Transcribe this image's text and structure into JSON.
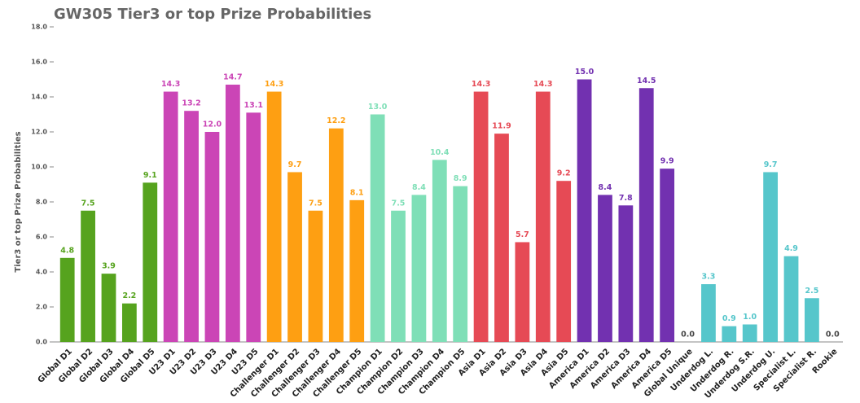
{
  "chart_data": {
    "type": "bar",
    "title": "GW305 Tier3 or top Prize Probabilities",
    "y_label": "Tier3 or top Prize Probabilities",
    "categories": [
      "Global D1",
      "Global D2",
      "Global D3",
      "Global D4",
      "Global D5",
      "U23 D1",
      "U23 D2",
      "U23 D3",
      "U23 D4",
      "U23 D5",
      "Challenger D1",
      "Challenger D2",
      "Challenger D3",
      "Challenger D4",
      "Challenger D5",
      "Champion D1",
      "Champion D2",
      "Champion D3",
      "Champion D4",
      "Champion D5",
      "Asia D1",
      "Asia D2",
      "Asia D3",
      "Asia D4",
      "Asia D5",
      "America D1",
      "America D2",
      "America D3",
      "America D4",
      "America D5",
      "Global Unique",
      "Underdog L.",
      "Underdog R.",
      "Underdog S.R.",
      "Underdog U.",
      "Specialist L.",
      "Specialist R.",
      "Rookie"
    ],
    "values": [
      4.8,
      7.5,
      3.9,
      2.2,
      9.1,
      14.3,
      13.2,
      12.0,
      14.7,
      13.1,
      14.3,
      9.7,
      7.5,
      12.2,
      8.1,
      13.0,
      7.5,
      8.4,
      10.4,
      8.9,
      14.3,
      11.9,
      5.7,
      14.3,
      9.2,
      15.0,
      8.4,
      7.8,
      14.5,
      9.9,
      0.0,
      3.3,
      0.9,
      1.0,
      9.7,
      4.9,
      2.5,
      0.0
    ],
    "value_labels": [
      "4.8",
      "7.5",
      "3.9",
      "2.2",
      "9.1",
      "14.3",
      "13.2",
      "12.0",
      "14.7",
      "13.1",
      "14.3",
      "9.7",
      "7.5",
      "12.2",
      "8.1",
      "13.0",
      "7.5",
      "8.4",
      "10.4",
      "8.9",
      "14.3",
      "11.9",
      "5.7",
      "14.3",
      "9.2",
      "15.0",
      "8.4",
      "7.8",
      "14.5",
      "9.9",
      "0.0",
      "3.3",
      "0.9",
      "1.0",
      "9.7",
      "4.9",
      "2.5",
      "0.0"
    ],
    "colors": [
      "#56a31e",
      "#56a31e",
      "#56a31e",
      "#56a31e",
      "#56a31e",
      "#cb45b6",
      "#cb45b6",
      "#cb45b6",
      "#cb45b6",
      "#cb45b6",
      "#fe9f12",
      "#fe9f12",
      "#fe9f12",
      "#fe9f12",
      "#fe9f12",
      "#7fdfb7",
      "#7fdfb7",
      "#7fdfb7",
      "#7fdfb7",
      "#7fdfb7",
      "#e64a55",
      "#e64a55",
      "#e64a55",
      "#e64a55",
      "#e64a55",
      "#7231b0",
      "#7231b0",
      "#7231b0",
      "#7231b0",
      "#7231b0",
      "#444444",
      "#56c6cb",
      "#56c6cb",
      "#56c6cb",
      "#56c6cb",
      "#56c6cb",
      "#56c6cb",
      "#444444"
    ],
    "ylim": [
      0,
      18
    ],
    "yticks": [
      {
        "value": 0,
        "label": "0.0"
      },
      {
        "value": 2,
        "label": "2.0"
      },
      {
        "value": 4,
        "label": "4.0"
      },
      {
        "value": 6,
        "label": "6.0"
      },
      {
        "value": 8,
        "label": "8.0"
      },
      {
        "value": 10,
        "label": "10.0"
      },
      {
        "value": 12,
        "label": "12.0"
      },
      {
        "value": 14,
        "label": "14.0"
      },
      {
        "value": 16,
        "label": "16.0"
      },
      {
        "value": 18,
        "label": "18.0"
      }
    ]
  }
}
